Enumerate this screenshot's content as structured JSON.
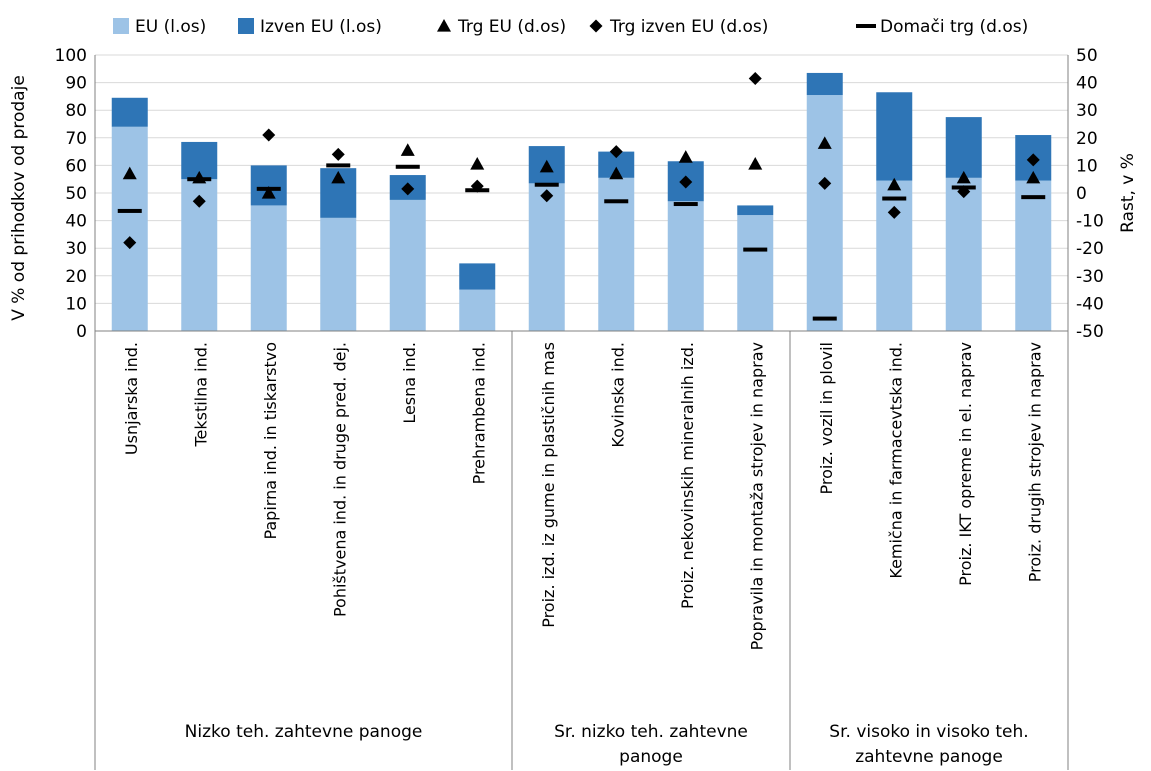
{
  "chart_data": {
    "type": "bar",
    "stacked": true,
    "ylabel": "V % od prihodkov od prodaje",
    "y2label": "Rast, v %",
    "ylim": [
      0,
      100
    ],
    "y2lim": [
      -50,
      50
    ],
    "yticks": [
      0,
      10,
      20,
      30,
      40,
      50,
      60,
      70,
      80,
      90,
      100
    ],
    "y2ticks": [
      -50,
      -40,
      -30,
      -20,
      -10,
      0,
      10,
      20,
      30,
      40,
      50
    ],
    "grid": true,
    "legend_position": "top",
    "colors": {
      "eu": "#9dc3e6",
      "izven": "#2e75b6",
      "marker": "#000000"
    },
    "legend": [
      {
        "key": "eu",
        "label": "EU (l.os)",
        "shape": "square"
      },
      {
        "key": "izven",
        "label": "Izven EU (l.os)",
        "shape": "square"
      },
      {
        "key": "trg_eu",
        "label": "Trg EU (d.os)",
        "shape": "triangle"
      },
      {
        "key": "trg_izven",
        "label": "Trg izven EU (d.os)",
        "shape": "diamond"
      },
      {
        "key": "domaci",
        "label": "Domači trg (d.os)",
        "shape": "dash"
      }
    ],
    "categories": [
      "Usnjarska ind.",
      "Tekstilna ind.",
      "Papirna ind. in tiskarstvo",
      "Pohištvena ind. in druge pred. dej.",
      "Lesna ind.",
      "Prehrambena ind.",
      "Proiz. izd. iz gume in plastičnih mas",
      "Kovinska ind.",
      "Proiz. nekovinskih mineralnih izd.",
      "Popravila in montaža strojev in naprav",
      "Proiz. vozil in plovil",
      "Kemična in farmacevtska ind.",
      "Proiz. IKT opreme in el. naprav",
      "Proiz. drugih strojev in naprav"
    ],
    "groups": [
      {
        "label": "Nizko teh. zahtevne panoge",
        "start": 0,
        "end": 5
      },
      {
        "label": "Sr. nizko teh. zahtevne panoge",
        "start": 6,
        "end": 9
      },
      {
        "label": "Sr. visoko in visoko teh. zahtevne panoge",
        "start": 10,
        "end": 13
      }
    ],
    "series": [
      {
        "name": "EU (l.os)",
        "key": "eu",
        "axis": "left",
        "kind": "bar",
        "values": [
          74,
          55,
          45.5,
          41,
          47.5,
          15,
          53.5,
          55.5,
          47,
          42,
          85.5,
          54.5,
          55.5,
          54.5
        ]
      },
      {
        "name": "Izven EU (l.os)",
        "key": "izven",
        "axis": "left",
        "kind": "bar",
        "values": [
          10.5,
          13.5,
          14.5,
          18,
          9,
          9.5,
          13.5,
          9.5,
          14.5,
          3.5,
          8,
          32,
          22,
          16.5
        ]
      },
      {
        "name": "Trg EU (d.os)",
        "key": "trg_eu",
        "axis": "right",
        "kind": "triangle",
        "values": [
          7,
          5.5,
          0,
          5.5,
          15.5,
          10.5,
          9.5,
          7,
          13,
          10.5,
          18,
          3,
          5.5,
          5.5
        ]
      },
      {
        "name": "Trg izven EU (d.os)",
        "key": "trg_izven",
        "axis": "right",
        "kind": "diamond",
        "values": [
          -18,
          -3,
          21,
          14,
          1.5,
          2.5,
          -1,
          15,
          4,
          41.5,
          3.5,
          -7,
          0.5,
          12
        ]
      },
      {
        "name": "Domači trg (d.os)",
        "key": "domaci",
        "axis": "right",
        "kind": "dash",
        "values": [
          -6.5,
          5,
          1.5,
          10,
          9.5,
          1,
          3,
          -3,
          -4,
          -20.5,
          -45.5,
          -2,
          2,
          -1.5
        ]
      }
    ]
  }
}
